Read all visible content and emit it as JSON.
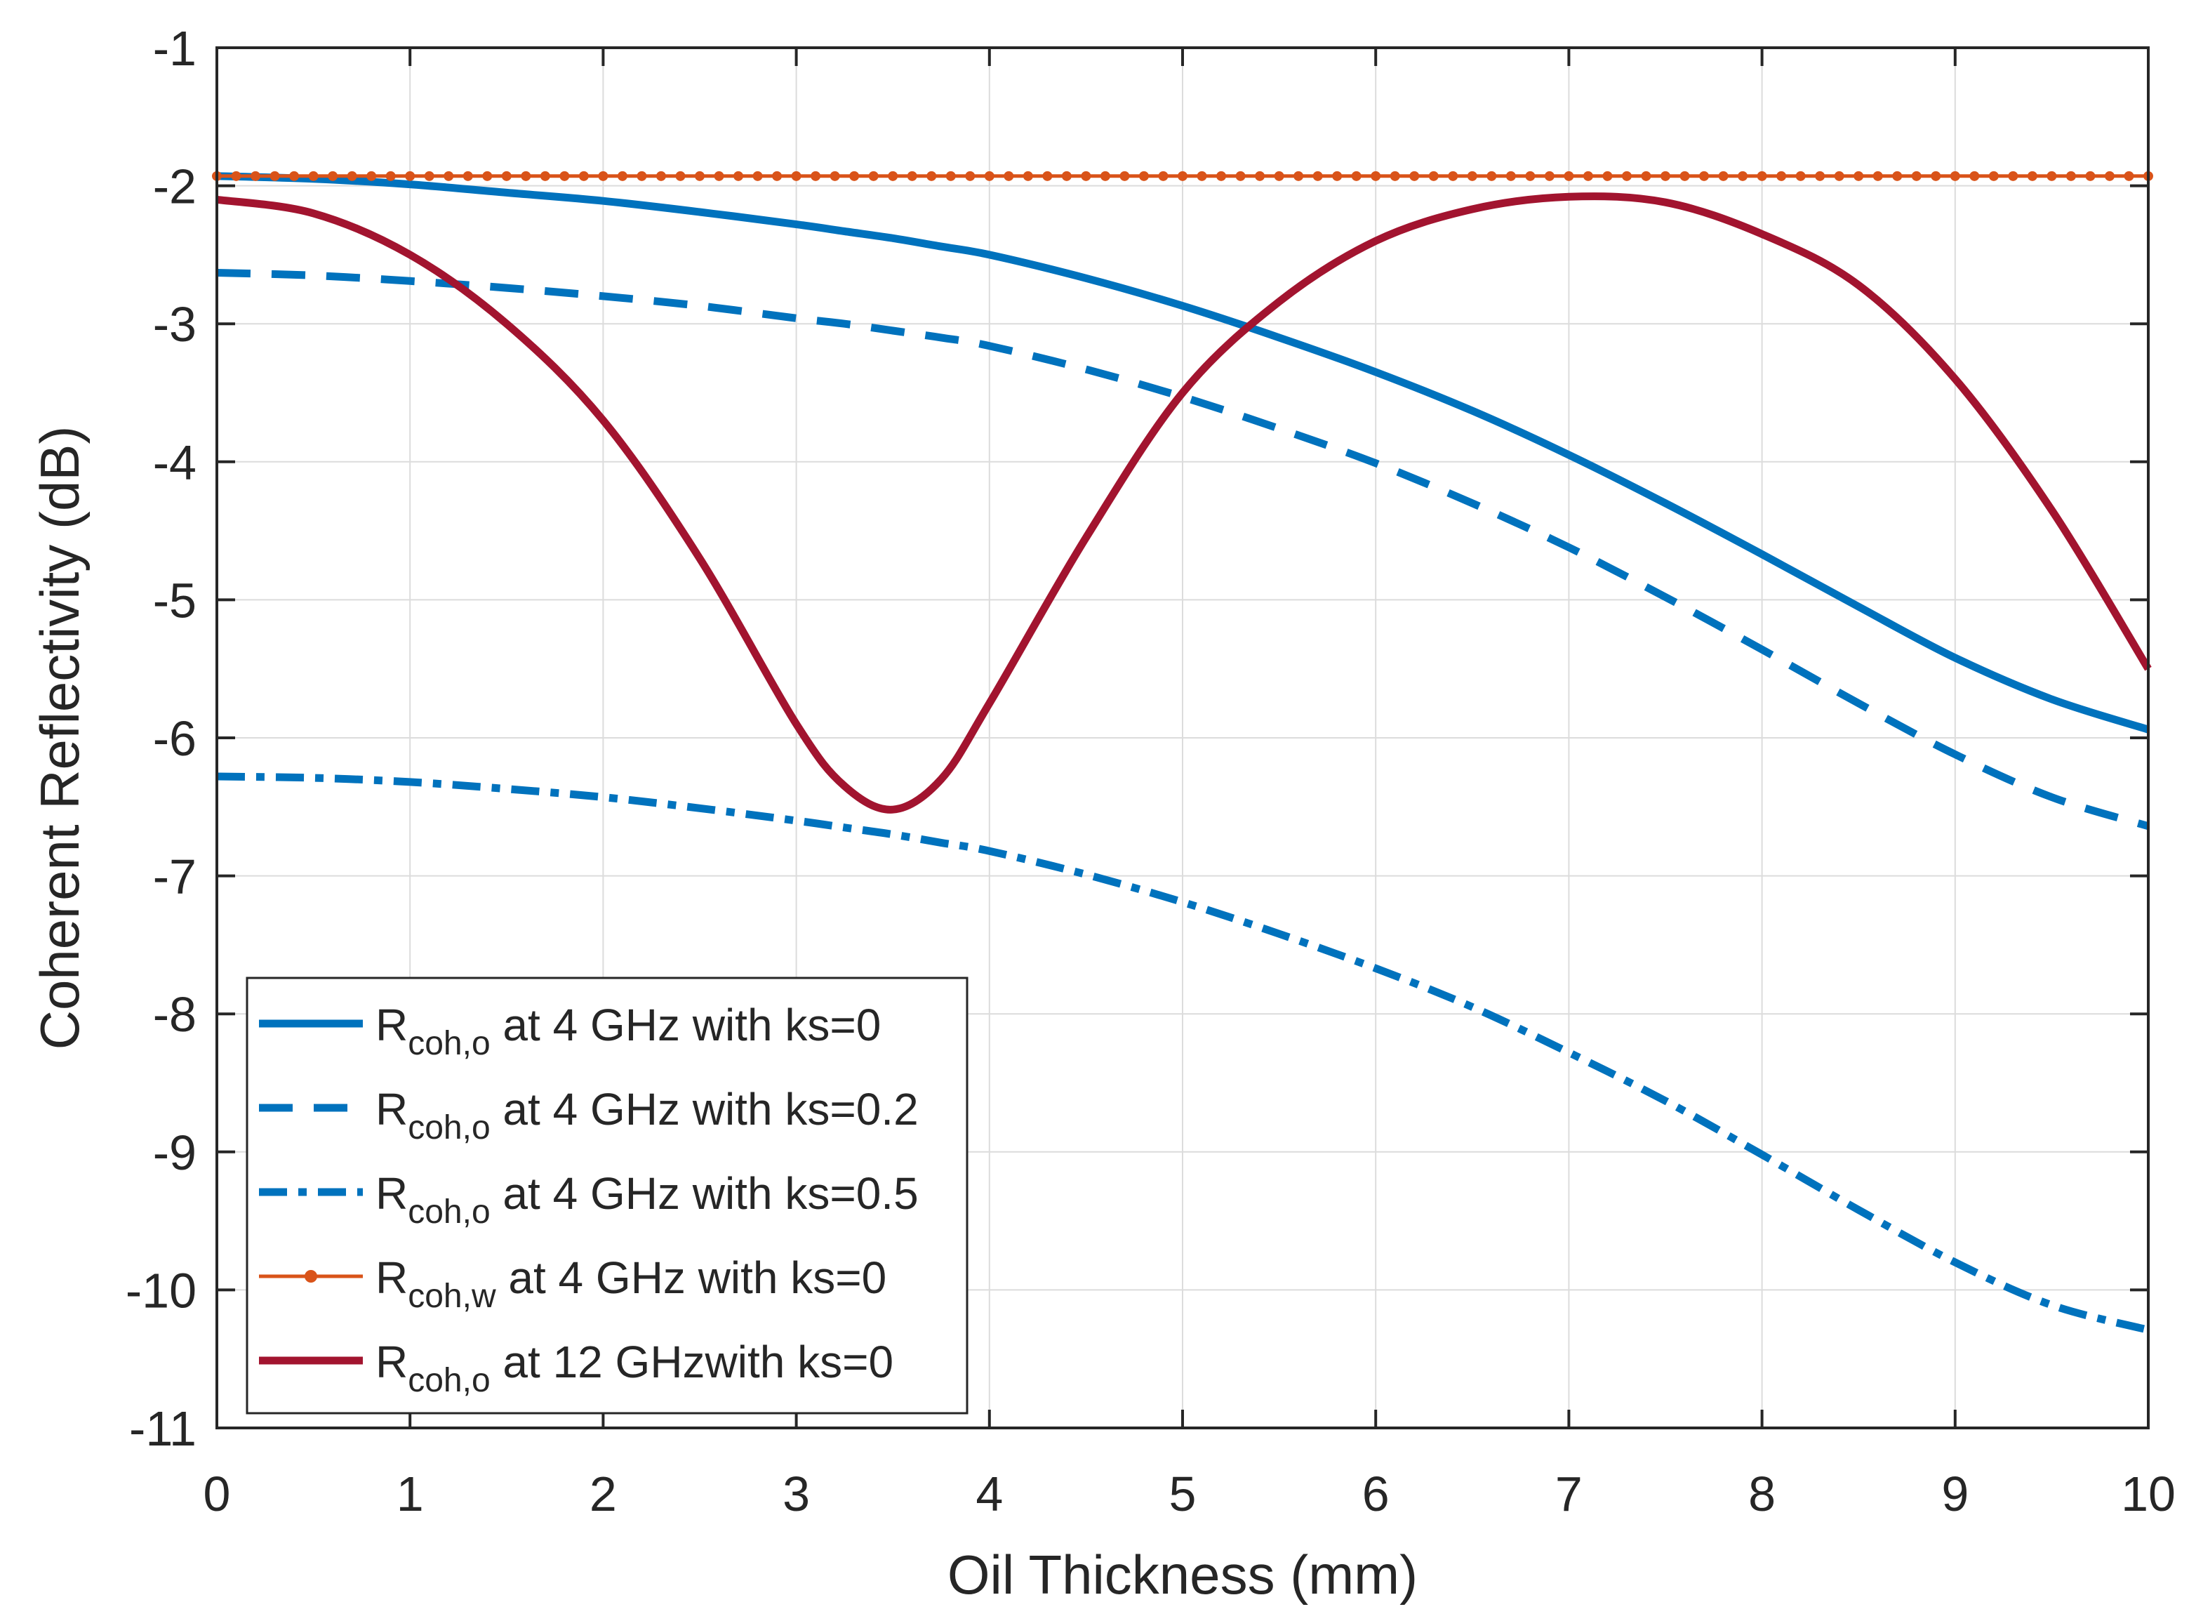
{
  "chart_data": {
    "type": "line",
    "title": "",
    "xlabel": "Oil Thickness (mm)",
    "ylabel": "Coherent Reflectivity (dB)",
    "xlim": [
      0,
      10
    ],
    "ylim": [
      -11,
      -1
    ],
    "xticks": [
      "0",
      "1",
      "2",
      "3",
      "4",
      "5",
      "6",
      "7",
      "8",
      "9",
      "10"
    ],
    "yticks": [
      "-1",
      "-2",
      "-3",
      "-4",
      "-5",
      "-6",
      "-7",
      "-8",
      "-9",
      "-10",
      "-11"
    ],
    "grid": true,
    "legend_position": "bottom-left",
    "x": [
      0,
      0.5,
      1,
      1.5,
      2,
      2.5,
      3,
      3.25,
      3.5,
      3.75,
      4,
      4.5,
      5,
      5.5,
      6,
      6.5,
      7,
      7.5,
      8,
      8.5,
      9,
      9.5,
      10
    ],
    "series": [
      {
        "name": "ks0_4ghz",
        "legend_main": "R",
        "legend_sub": "coh,o",
        "legend_rest": " at 4 GHz with ks=0",
        "color": "#0072BD",
        "style": "solid",
        "values": [
          -1.93,
          -1.95,
          -1.99,
          -2.05,
          -2.11,
          -2.19,
          -2.28,
          -2.33,
          -2.38,
          -2.44,
          -2.5,
          -2.67,
          -2.87,
          -3.1,
          -3.35,
          -3.63,
          -3.95,
          -4.3,
          -4.67,
          -5.05,
          -5.42,
          -5.72,
          -5.94
        ]
      },
      {
        "name": "ks02_4ghz",
        "legend_main": "R",
        "legend_sub": "coh,o",
        "legend_rest": " at 4 GHz with ks=0.2",
        "color": "#0072BD",
        "style": "dashed",
        "values": [
          -2.63,
          -2.65,
          -2.69,
          -2.74,
          -2.8,
          -2.87,
          -2.96,
          -3.0,
          -3.05,
          -3.1,
          -3.16,
          -3.33,
          -3.53,
          -3.76,
          -4.01,
          -4.3,
          -4.62,
          -4.98,
          -5.36,
          -5.75,
          -6.12,
          -6.43,
          -6.64
        ]
      },
      {
        "name": "ks05_4ghz",
        "legend_main": "R",
        "legend_sub": "coh,o",
        "legend_rest": " at 4 GHz with ks=0.5",
        "color": "#0072BD",
        "style": "dashdot",
        "values": [
          -6.28,
          -6.29,
          -6.32,
          -6.37,
          -6.43,
          -6.51,
          -6.6,
          -6.65,
          -6.7,
          -6.76,
          -6.82,
          -6.99,
          -7.19,
          -7.42,
          -7.67,
          -7.95,
          -8.28,
          -8.63,
          -9.02,
          -9.42,
          -9.8,
          -10.11,
          -10.29
        ]
      },
      {
        "name": "ks0_4ghz_water",
        "legend_main": "R",
        "legend_sub": "coh,w",
        "legend_rest": " at 4 GHz with ks=0",
        "color": "#D95319",
        "style": "dotted-line",
        "values": [
          -1.93,
          -1.93,
          -1.93,
          -1.93,
          -1.93,
          -1.93,
          -1.93,
          -1.93,
          -1.93,
          -1.93,
          -1.93,
          -1.93,
          -1.93,
          -1.93,
          -1.93,
          -1.93,
          -1.93,
          -1.93,
          -1.93,
          -1.93,
          -1.93,
          -1.93,
          -1.93
        ]
      },
      {
        "name": "ks0_12ghz",
        "legend_main": "R",
        "legend_sub": "coh,o",
        "legend_rest": " at 12 GHzwith ks=0",
        "color": "#A2142F",
        "style": "solid",
        "values": [
          -2.1,
          -2.2,
          -2.5,
          -3.0,
          -3.7,
          -4.7,
          -5.9,
          -6.35,
          -6.52,
          -6.3,
          -5.75,
          -4.55,
          -3.5,
          -2.84,
          -2.4,
          -2.17,
          -2.08,
          -2.12,
          -2.35,
          -2.72,
          -3.4,
          -4.35,
          -5.5
        ]
      }
    ]
  }
}
